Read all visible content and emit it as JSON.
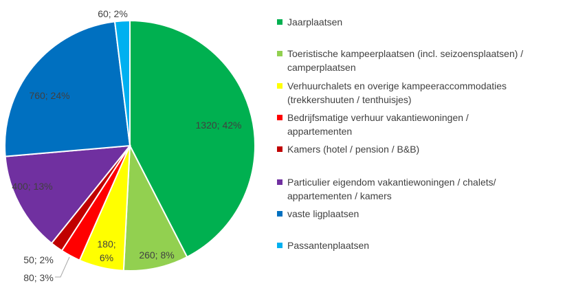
{
  "chart_data": {
    "type": "pie",
    "title": "",
    "start_angle_deg": 0,
    "direction": "clockwise",
    "series": [
      {
        "name": "Jaarplaatsen",
        "value": 1320,
        "label": "1320; 42%",
        "color": "#00b050"
      },
      {
        "name": "Toeristische kampeerplaatsen (incl. seizoensplaatsen) / camperplaatsen",
        "value": 260,
        "label": "260; 8%",
        "color": "#92d050"
      },
      {
        "name": "Verhuurchalets en overige kampeeraccommodaties (trekkershuuten / tenthuisjes)",
        "value": 180,
        "label": "180; 6%",
        "label_lines": [
          "180;",
          "6%"
        ],
        "color": "#ffff00"
      },
      {
        "name": "Bedrijfsmatige verhuur vakantiewoningen / appartementen",
        "value": 80,
        "label": "80; 3%",
        "color": "#ff0000"
      },
      {
        "name": "Kamers (hotel / pension / B&B)",
        "value": 50,
        "label": "50; 2%",
        "color": "#c00000"
      },
      {
        "name": "Particulier eigendom vakantiewoningen / chalets/ appartementen / kamers",
        "value": 400,
        "label": "400; 13%",
        "color": "#7030a0"
      },
      {
        "name": "vaste ligplaatsen",
        "value": 760,
        "label": "760; 24%",
        "color": "#0070c0"
      },
      {
        "name": "Passantenplaatsen",
        "value": 60,
        "label": "60; 2%",
        "color": "#00b0f0"
      }
    ],
    "legend_position": "right"
  },
  "legend": [
    {
      "lines": [
        "Jaarplaatsen"
      ],
      "color": "#00b050"
    },
    {
      "lines": [
        "Toeristische kampeerplaatsen (incl. seizoensplaatsen) /",
        "camperplaatsen"
      ],
      "color": "#92d050"
    },
    {
      "lines": [
        "Verhuurchalets en overige kampeeraccommodaties",
        "(trekkershuuten / tenthuisjes)"
      ],
      "color": "#ffff00"
    },
    {
      "lines": [
        "Bedrijfsmatige verhuur vakantiewoningen /",
        "appartementen"
      ],
      "color": "#ff0000"
    },
    {
      "lines": [
        "Kamers (hotel / pension / B&B)"
      ],
      "color": "#c00000"
    },
    {
      "lines": [
        "Particulier eigendom vakantiewoningen / chalets/",
        "appartementen / kamers"
      ],
      "color": "#7030a0"
    },
    {
      "lines": [
        "vaste ligplaatsen"
      ],
      "color": "#0070c0"
    },
    {
      "lines": [
        "Passantenplaatsen"
      ],
      "color": "#00b0f0"
    }
  ]
}
